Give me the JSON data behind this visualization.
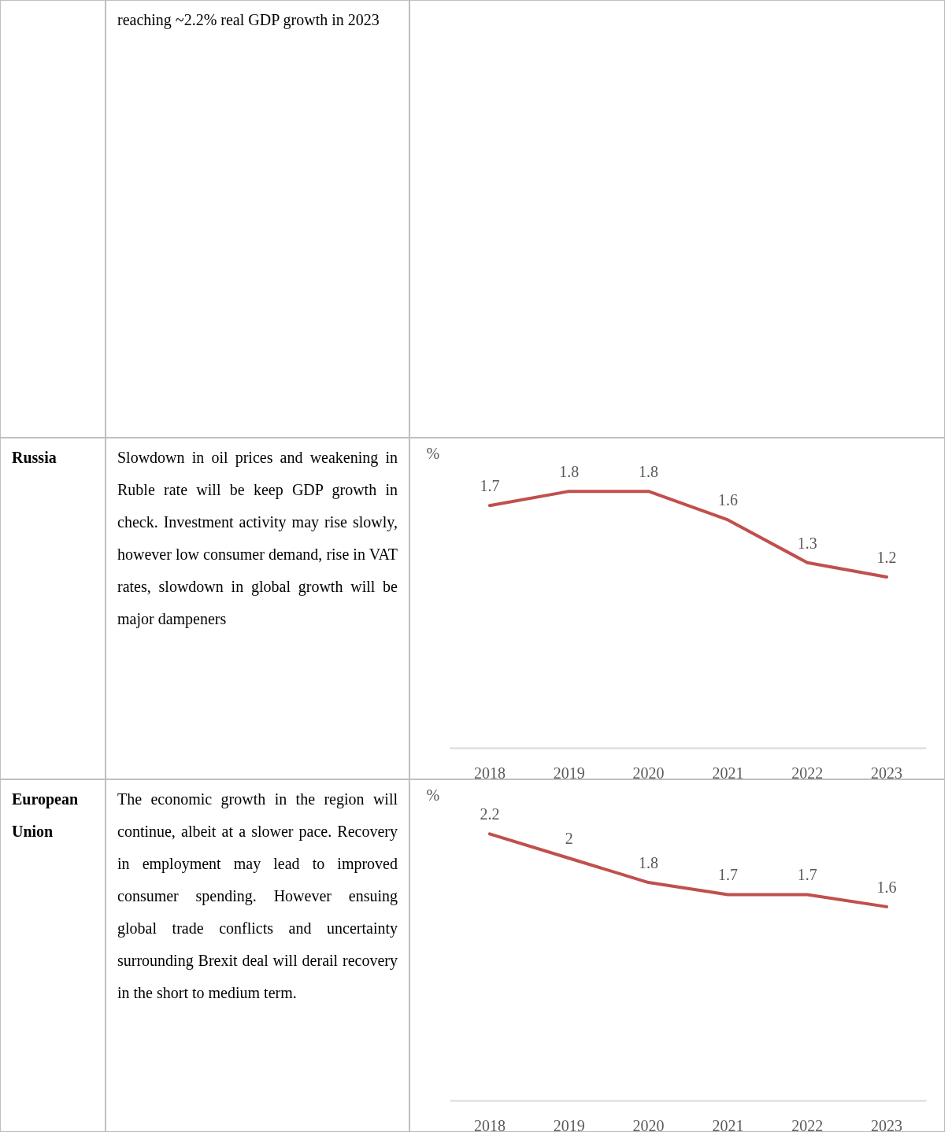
{
  "chart_data": [
    {
      "type": "other",
      "annotations": [
        "reaching ~2.2% real GDP growth in 2023"
      ]
    },
    {
      "type": "other",
      "title": "Russia",
      "annotations": [
        "Slowdown in oil prices and weakening in Ruble rate will be keep GDP growth in check. Investment activity may rise slowly, however low consumer demand, rise in VAT rates, slowdown in global growth will be major dampeners"
      ]
    },
    {
      "type": "line",
      "ylabel": "%",
      "categories": [
        "2018",
        "2019",
        "2020",
        "2021",
        "2022",
        "2023"
      ],
      "values": [
        1.7,
        1.8,
        1.8,
        1.6,
        1.3,
        1.2
      ],
      "color": "#c0504d",
      "data_labels": true
    },
    {
      "type": "other",
      "title": "European Union",
      "annotations": [
        "The economic growth in the region will continue, albeit at a slower pace. Recovery in employment may lead to improved consumer spending. However ensuing global trade conflicts and uncertainty surrounding Brexit deal will derail recovery in the short to medium term."
      ]
    },
    {
      "type": "line",
      "ylabel": "%",
      "categories": [
        "2018",
        "2019",
        "2020",
        "2021",
        "2022",
        "2023"
      ],
      "values": [
        2.2,
        2,
        1.8,
        1.7,
        1.7,
        1.6
      ],
      "color": "#c0504d",
      "data_labels": true
    }
  ]
}
